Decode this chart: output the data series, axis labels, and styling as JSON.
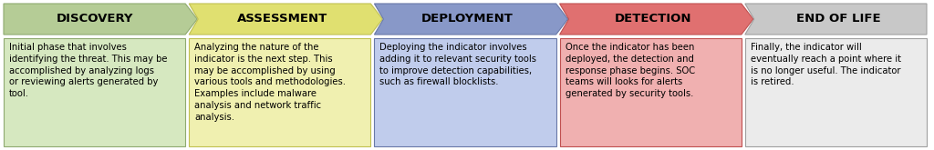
{
  "phases": [
    {
      "title": "DISCOVERY",
      "header_color": "#b5cc96",
      "body_color": "#d6e8c0",
      "border_color": "#8faa70",
      "text": "Initial phase that involves\nidentifying the threat. This may be\naccomplished by analyzing logs\nor reviewing alerts generated by\ntool."
    },
    {
      "title": "ASSESSMENT",
      "header_color": "#e0e070",
      "body_color": "#f0f0b0",
      "border_color": "#c0c050",
      "text": "Analyzing the nature of the\nindicator is the next step. This\nmay be accomplished by using\nvarious tools and methodologies.\nExamples include malware\nanalysis and network traffic\nanalysis."
    },
    {
      "title": "DEPLOYMENT",
      "header_color": "#8898c8",
      "body_color": "#c0ccec",
      "border_color": "#6878a8",
      "text": "Deploying the indicator involves\nadding it to relevant security tools\nto improve detection capabilities,\nsuch as firewall blocklists."
    },
    {
      "title": "DETECTION",
      "header_color": "#e07070",
      "body_color": "#f0b0b0",
      "border_color": "#c05050",
      "text": "Once the indicator has been\ndeployed, the detection and\nresponse phase begins. SOC\nteams will looks for alerts\ngenerated by security tools."
    },
    {
      "title": "END OF LIFE",
      "header_color": "#c8c8c8",
      "body_color": "#ebebeb",
      "border_color": "#a0a0a0",
      "text": "Finally, the indicator will\neventually reach a point where it\nis no longer useful. The indicator\nis retired."
    }
  ],
  "background_color": "#ffffff",
  "title_fontsize": 9.5,
  "body_fontsize": 7.2,
  "fig_width": 10.24,
  "fig_height": 1.65,
  "dpi": 100
}
